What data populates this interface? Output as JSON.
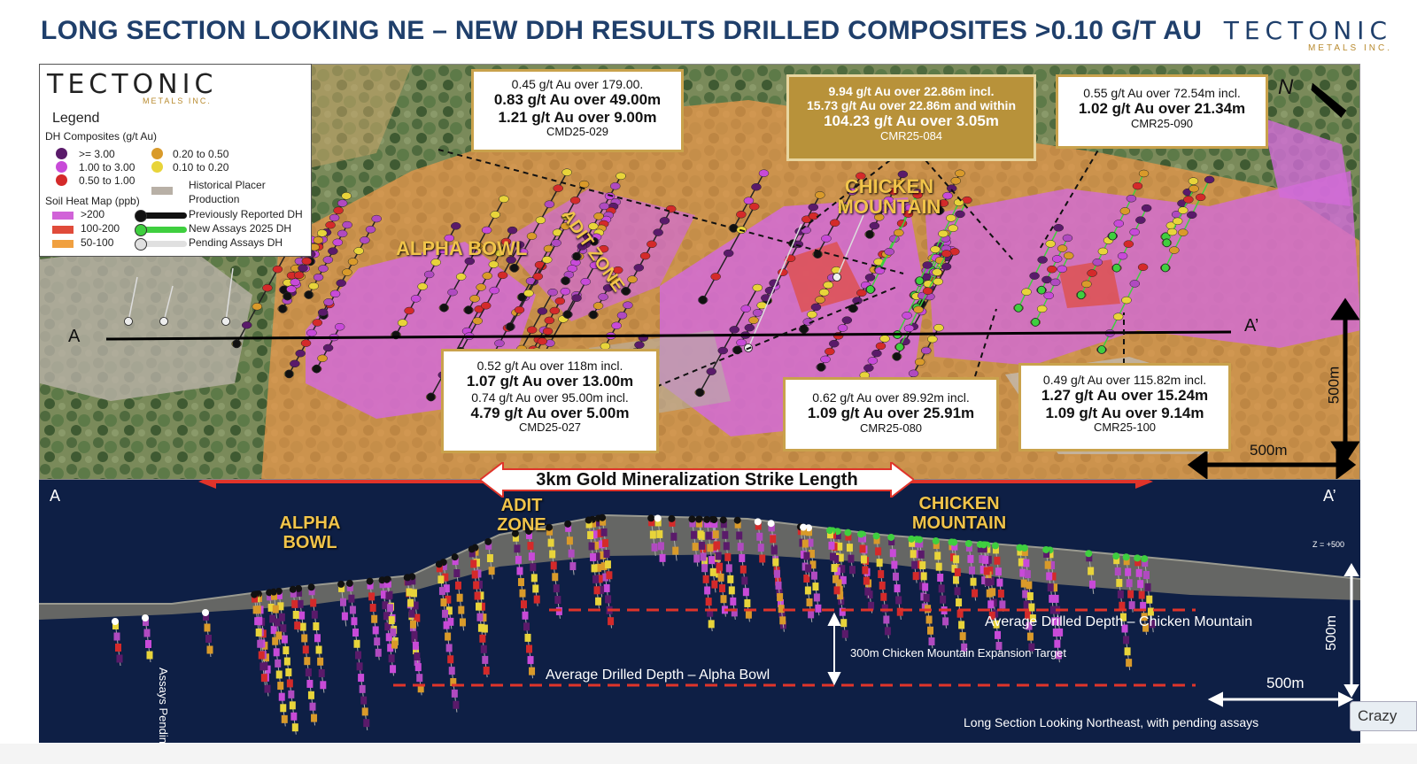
{
  "title": "LONG SECTION LOOKING NE – NEW DDH RESULTS DRILLED COMPOSITES >0.10 G/T AU",
  "brand": {
    "name": "TECTONIC",
    "sub": "METALS INC."
  },
  "legend": {
    "brand_name": "TECTONIC",
    "brand_sub": "METALS INC.",
    "heading": "Legend",
    "dh_title": "DH Composites (g/t Au)",
    "dh_items": [
      {
        "label": ">= 3.00",
        "color": "#5a1a6a"
      },
      {
        "label": "1.00 to 3.00",
        "color": "#c84ad8"
      },
      {
        "label": "0.50 to 1.00",
        "color": "#d42a2a"
      },
      {
        "label": "0.20 to 0.50",
        "color": "#d99a2a"
      },
      {
        "label": "0.10 to 0.20",
        "color": "#e8d43a"
      }
    ],
    "placer": "Historical Placer Production",
    "soil_title": "Soil Heat Map (ppb)",
    "soil_items": [
      {
        "label": ">200",
        "color": "#d163d8"
      },
      {
        "label": "100-200",
        "color": "#e04b3a"
      },
      {
        "label": "50-100",
        "color": "#f0a040"
      }
    ],
    "dh_types": [
      {
        "label": "Previously Reported DH",
        "color": "#111111"
      },
      {
        "label": "New Assays 2025 DH",
        "color": "#3fcf3f"
      },
      {
        "label": "Pending Assays DH",
        "color": "#e0e0e0"
      }
    ]
  },
  "callouts": {
    "cmd029": {
      "l1": "0.45 g/t Au over 179.00.",
      "l2": "0.83 g/t Au over 49.00m",
      "l3": "1.21 g/t Au over 9.00m",
      "id": "CMD25-029"
    },
    "cmr084": {
      "l1": "9.94 g/t Au over 22.86m  incl.",
      "l2": "15.73 g/t Au over 22.86m and within",
      "l3": "104.23 g/t Au over 3.05m",
      "id": "CMR25-084"
    },
    "cmr090": {
      "l1": "0.55 g/t Au over 72.54m incl.",
      "l2": "1.02 g/t Au over 21.34m",
      "id": "CMR25-090"
    },
    "cmd027": {
      "l1": "0.52 g/t Au over 118m incl.",
      "l2": "1.07 g/t Au over 13.00m",
      "l3": "0.74 g/t Au over 95.00m incl.",
      "l4": "4.79 g/t Au over 5.00m",
      "id": "CMD25-027"
    },
    "cmr080": {
      "l1": "0.62 g/t Au over 89.92m incl.",
      "l2": "1.09 g/t Au over 25.91m",
      "id": "CMR25-080"
    },
    "cmr100": {
      "l1": "0.49 g/t Au over 115.82m incl.",
      "l2": "1.27 g/t Au over 15.24m",
      "l3": "1.09 g/t Au over 9.14m",
      "id": "CMR25-100"
    }
  },
  "map_labels": {
    "alpha_bowl": "ALPHA BOWL",
    "adit_zone": "ADIT ZONE",
    "chicken_mountain": "CHICKEN MOUNTAIN",
    "a": "A",
    "a_prime": "A’",
    "north": "N",
    "scale_v": "500m",
    "scale_h": "500m"
  },
  "section": {
    "strike": "3km Gold Mineralization Strike Length",
    "a": "A",
    "a_prime": "A’",
    "alpha_bowl": "ALPHA BOWL",
    "adit_zone": "ADIT ZONE",
    "chicken_mountain": "CHICKEN MOUNTAIN",
    "z_label": "Z = +500",
    "avg_chicken": "Average Drilled Depth – Chicken Mountain",
    "avg_alpha": "Average Drilled Depth – Alpha Bowl",
    "expansion": "300m Chicken Mountain Expansion Target",
    "scale_v": "500m",
    "scale_h": "500m",
    "pending": "Assays Pending",
    "footer": "Long Section Looking Northeast, with pending assays"
  },
  "overlay": {
    "crazy": "Crazy"
  }
}
